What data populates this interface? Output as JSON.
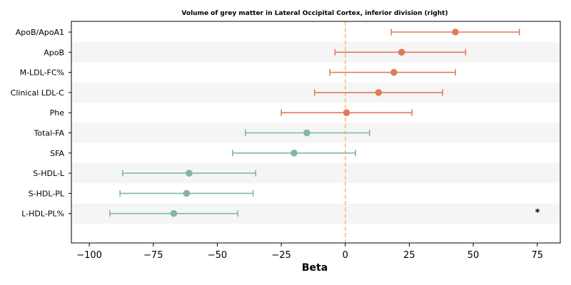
{
  "chart_data": {
    "type": "forest",
    "title": "Volume of grey matter in Lateral Occipital Cortex, inferior division (right)",
    "xlabel": "Beta",
    "ylabel": "",
    "xlim": [
      -107,
      84
    ],
    "xticks": [
      -100,
      -75,
      -50,
      -25,
      0,
      25,
      50,
      75
    ],
    "xtick_labels": [
      "−100",
      "−75",
      "−50",
      "−25",
      "0",
      "25",
      "50",
      "75"
    ],
    "reference_line": 0,
    "reference_line_color": "#f5c27a",
    "positive_color": "#e07b5a",
    "negative_color": "#82b89a",
    "stripe_color": "#f5f5f5",
    "rows": [
      {
        "label": "ApoB/ApoA1",
        "beta": 43,
        "lower": 18,
        "upper": 68,
        "annotation": ""
      },
      {
        "label": "ApoB",
        "beta": 22,
        "lower": -4,
        "upper": 47,
        "annotation": ""
      },
      {
        "label": "M-LDL-FC%",
        "beta": 19,
        "lower": -6,
        "upper": 43,
        "annotation": ""
      },
      {
        "label": "Clinical LDL-C",
        "beta": 13,
        "lower": -12,
        "upper": 38,
        "annotation": ""
      },
      {
        "label": "Phe",
        "beta": 0.5,
        "lower": -25,
        "upper": 26,
        "annotation": ""
      },
      {
        "label": "Total-FA",
        "beta": -15,
        "lower": -39,
        "upper": 9.5,
        "annotation": ""
      },
      {
        "label": "SFA",
        "beta": -20,
        "lower": -44,
        "upper": 4,
        "annotation": ""
      },
      {
        "label": "S-HDL-L",
        "beta": -61,
        "lower": -87,
        "upper": -35,
        "annotation": ""
      },
      {
        "label": "S-HDL-PL",
        "beta": -62,
        "lower": -88,
        "upper": -36,
        "annotation": ""
      },
      {
        "label": "L-HDL-PL%",
        "beta": -67,
        "lower": -92,
        "upper": -42,
        "annotation": "*"
      }
    ]
  }
}
